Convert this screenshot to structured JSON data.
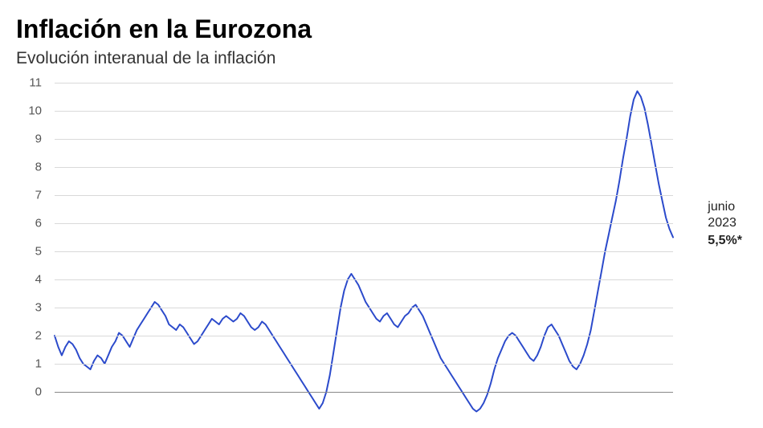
{
  "title": "Inflación en la Eurozona",
  "subtitle": "Evolución interanual de la inflación",
  "chart": {
    "type": "line",
    "background_color": "#ffffff",
    "grid_color": "#d9d9d9",
    "baseline_color": "#888888",
    "line_color": "#2b4acb",
    "line_width": 2,
    "ylim": [
      -1,
      11
    ],
    "ytick_step": 1,
    "yticks": [
      0,
      1,
      2,
      3,
      4,
      5,
      6,
      7,
      8,
      9,
      10,
      11
    ],
    "ytick_fontsize": 15,
    "ytick_color": "#555555",
    "title_fontsize": 32,
    "subtitle_fontsize": 21,
    "series": [
      2.0,
      1.6,
      1.3,
      1.6,
      1.8,
      1.7,
      1.5,
      1.2,
      1.0,
      0.9,
      0.8,
      1.1,
      1.3,
      1.2,
      1.0,
      1.3,
      1.6,
      1.8,
      2.1,
      2.0,
      1.8,
      1.6,
      1.9,
      2.2,
      2.4,
      2.6,
      2.8,
      3.0,
      3.2,
      3.1,
      2.9,
      2.7,
      2.4,
      2.3,
      2.2,
      2.4,
      2.3,
      2.1,
      1.9,
      1.7,
      1.8,
      2.0,
      2.2,
      2.4,
      2.6,
      2.5,
      2.4,
      2.6,
      2.7,
      2.6,
      2.5,
      2.6,
      2.8,
      2.7,
      2.5,
      2.3,
      2.2,
      2.3,
      2.5,
      2.4,
      2.2,
      2.0,
      1.8,
      1.6,
      1.4,
      1.2,
      1.0,
      0.8,
      0.6,
      0.4,
      0.2,
      0.0,
      -0.2,
      -0.4,
      -0.6,
      -0.4,
      0.0,
      0.6,
      1.4,
      2.2,
      3.0,
      3.6,
      4.0,
      4.2,
      4.0,
      3.8,
      3.5,
      3.2,
      3.0,
      2.8,
      2.6,
      2.5,
      2.7,
      2.8,
      2.6,
      2.4,
      2.3,
      2.5,
      2.7,
      2.8,
      3.0,
      3.1,
      2.9,
      2.7,
      2.4,
      2.1,
      1.8,
      1.5,
      1.2,
      1.0,
      0.8,
      0.6,
      0.4,
      0.2,
      0.0,
      -0.2,
      -0.4,
      -0.6,
      -0.7,
      -0.6,
      -0.4,
      -0.1,
      0.3,
      0.8,
      1.2,
      1.5,
      1.8,
      2.0,
      2.1,
      2.0,
      1.8,
      1.6,
      1.4,
      1.2,
      1.1,
      1.3,
      1.6,
      2.0,
      2.3,
      2.4,
      2.2,
      2.0,
      1.7,
      1.4,
      1.1,
      0.9,
      0.8,
      1.0,
      1.3,
      1.7,
      2.2,
      2.9,
      3.6,
      4.3,
      5.0,
      5.6,
      6.2,
      6.8,
      7.5,
      8.3,
      9.0,
      9.8,
      10.4,
      10.7,
      10.5,
      10.1,
      9.5,
      8.8,
      8.1,
      7.4,
      6.8,
      6.2,
      5.8,
      5.5
    ],
    "annotation": {
      "line1": "junio",
      "line2": "2023",
      "line3": "5,5%*",
      "fontsize": 16,
      "color": "#222222"
    }
  }
}
